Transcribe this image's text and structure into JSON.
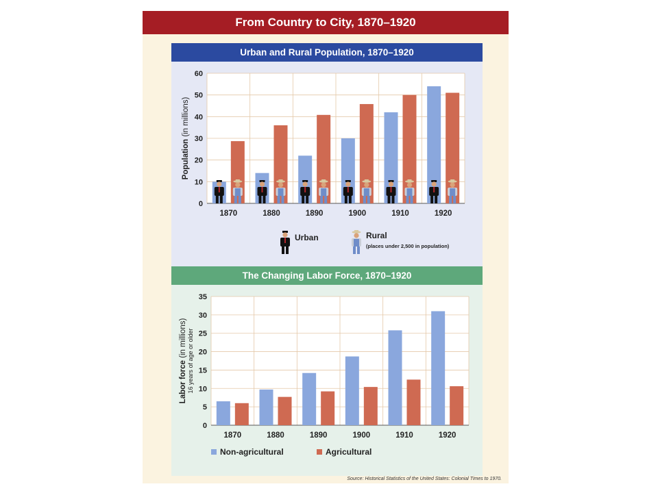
{
  "title": "From Country to City, 1870–1920",
  "source": "Source: Historical Statistics of the United States: Colonial Times to 1970.",
  "colors": {
    "title_bar": "#a51d24",
    "panel1_header": "#2b4aa0",
    "panel2_header": "#5ea87b",
    "blue_bar": "#8aa7dd",
    "red_bar": "#cf6a52"
  },
  "chart_data": [
    {
      "type": "bar",
      "title": "Urban and Rural Population, 1870–1920",
      "ylabel": "Population",
      "ylabel_unit": "(in millions)",
      "ylim": [
        0,
        60
      ],
      "yticks": [
        0,
        10,
        20,
        30,
        40,
        50,
        60
      ],
      "categories": [
        "1870",
        "1880",
        "1890",
        "1900",
        "1910",
        "1920"
      ],
      "series": [
        {
          "name": "Urban",
          "values": [
            10,
            14,
            22,
            30,
            42,
            54
          ]
        },
        {
          "name": "Rural",
          "note": "(places under 2,500 in population)",
          "values": [
            28.7,
            36,
            40.8,
            45.8,
            50,
            51
          ]
        }
      ],
      "grid": true,
      "legend": "bottom",
      "icons": [
        "urban-person-icon",
        "rural-person-icon"
      ]
    },
    {
      "type": "bar",
      "title": "The Changing Labor Force, 1870–1920",
      "ylabel": "Labor force",
      "ylabel_unit": "(in millions)",
      "ylabel_sub": "16 years of age or older",
      "ylim": [
        0,
        35
      ],
      "yticks": [
        0,
        5,
        10,
        15,
        20,
        25,
        30,
        35
      ],
      "categories": [
        "1870",
        "1880",
        "1890",
        "1900",
        "1910",
        "1920"
      ],
      "series": [
        {
          "name": "Non-agricultural",
          "values": [
            6.5,
            9.7,
            14.2,
            18.7,
            25.8,
            31
          ]
        },
        {
          "name": "Agricultural",
          "values": [
            6,
            7.7,
            9.2,
            10.4,
            12.4,
            10.6
          ]
        }
      ],
      "grid": true,
      "legend": "bottom"
    }
  ]
}
